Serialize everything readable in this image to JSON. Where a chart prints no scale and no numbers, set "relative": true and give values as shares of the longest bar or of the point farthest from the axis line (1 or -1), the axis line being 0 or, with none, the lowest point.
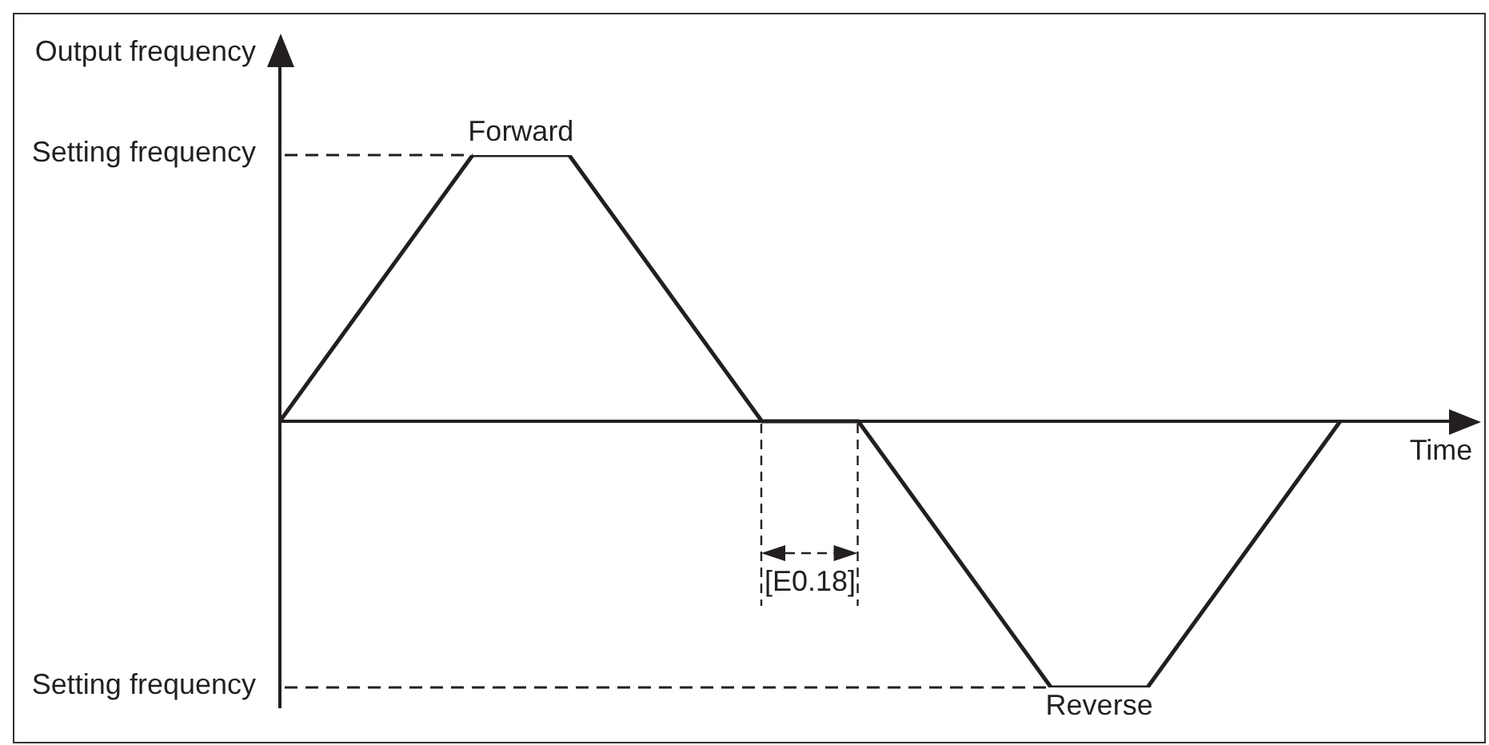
{
  "chart_data": {
    "type": "line",
    "xlabel": "Time",
    "ylabel": "Output frequency",
    "categories": [
      null,
      null,
      null,
      null,
      null,
      null,
      null,
      null,
      null,
      null,
      null,
      null
    ],
    "values": [
      0,
      0.5,
      1,
      1,
      0.5,
      0,
      0,
      -0.5,
      -1,
      -1,
      -0.5,
      0
    ],
    "color": "#231f20",
    "relative": true,
    "ref_lines": [
      {
        "axis": "y",
        "value": 1,
        "label": "Setting frequency",
        "line_style": "dashed"
      },
      {
        "axis": "y",
        "value": -1,
        "label": "Setting frequency",
        "line_style": "dashed"
      }
    ],
    "annotations": [
      {
        "text": "Forward",
        "y": 1
      },
      {
        "text": "Reverse",
        "y": -1
      },
      "[E0.18]"
    ]
  }
}
